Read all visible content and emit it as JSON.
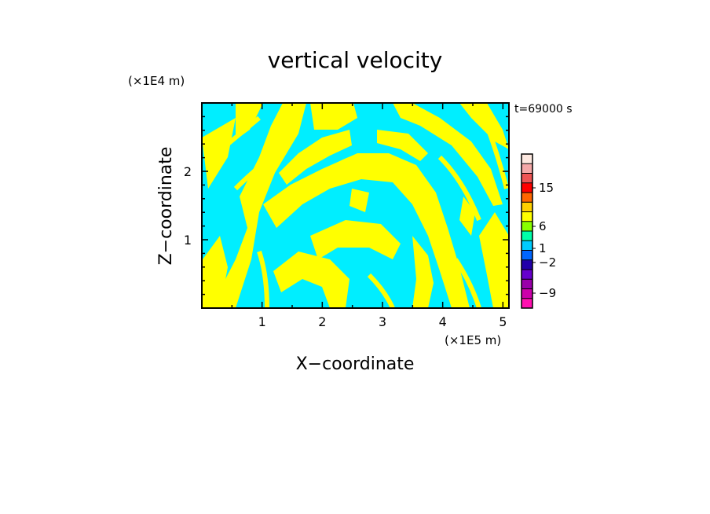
{
  "chart_data": {
    "type": "heatmap",
    "title": "vertical velocity",
    "xlabel": "X−coordinate",
    "ylabel": "Z−coordinate",
    "x_unit": "(×1E5 m)",
    "y_unit": "(×1E4 m)",
    "time_label": "t=69000 s",
    "xlim": [
      0,
      5.1
    ],
    "ylim": [
      0,
      3.0
    ],
    "x_ticks": [
      {
        "value": 1,
        "label": "1"
      },
      {
        "value": 2,
        "label": "2"
      },
      {
        "value": 3,
        "label": "3"
      },
      {
        "value": 4,
        "label": "4"
      },
      {
        "value": 5,
        "label": "5"
      }
    ],
    "y_ticks": [
      {
        "value": 1,
        "label": "1"
      },
      {
        "value": 2,
        "label": "2"
      }
    ],
    "field_colors": {
      "positive": "#ffff00",
      "negative": "#00eeff"
    },
    "colorbar": {
      "levels": [
        {
          "color": "#ff10b0"
        },
        {
          "color": "#cc00aa"
        },
        {
          "color": "#9900aa"
        },
        {
          "color": "#6600cc"
        },
        {
          "color": "#2200aa"
        },
        {
          "color": "#0066ff"
        },
        {
          "color": "#00ccff"
        },
        {
          "color": "#00ffaa"
        },
        {
          "color": "#88ff00"
        },
        {
          "color": "#ffff00"
        },
        {
          "color": "#ffd000"
        },
        {
          "color": "#ff6600"
        },
        {
          "color": "#ff0000"
        },
        {
          "color": "#ee5555"
        },
        {
          "color": "#f4a8a8"
        },
        {
          "color": "#fde8e0"
        }
      ],
      "labels": [
        {
          "label": "15",
          "value": 15
        },
        {
          "label": "6",
          "value": 6
        },
        {
          "label": "1",
          "value": 1
        },
        {
          "label": "−2",
          "value": -2
        },
        {
          "label": "−9",
          "value": -9
        }
      ]
    }
  }
}
